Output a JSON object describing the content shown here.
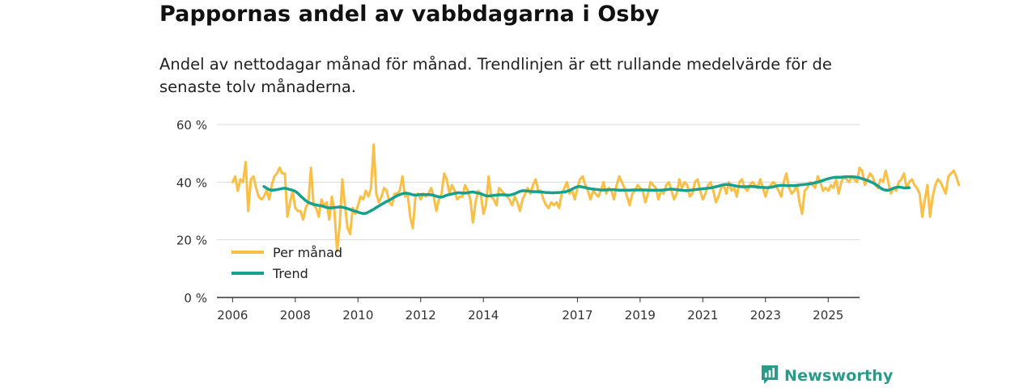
{
  "header": {
    "title": "Pappornas andel av vabbdagarna i Osby",
    "subtitle": "Andel av nettodagar månad för månad. Trendlinjen är ett rullande medelvärde för de senaste tolv månaderna."
  },
  "brand": {
    "name": "Newsworthy",
    "icon": "newsworthy-logo-icon"
  },
  "colors": {
    "monthly": "#fbbf45",
    "trend": "#16a08d",
    "grid": "#d9d9d9",
    "axis": "#333333"
  },
  "chart_data": {
    "type": "line",
    "title": "Pappornas andel av vabbdagarna i Osby",
    "xlabel": "",
    "ylabel": "",
    "x_start": 2006.0,
    "x_step_months": 1,
    "xlim": [
      2005.5,
      2026.0
    ],
    "ylim": [
      0,
      60
    ],
    "y_ticks": [
      0,
      20,
      40,
      60
    ],
    "y_tick_labels": [
      "0 %",
      "20 %",
      "40 %",
      "60 %"
    ],
    "x_ticks": [
      2006,
      2008,
      2010,
      2012,
      2014,
      2017,
      2019,
      2021,
      2023,
      2025
    ],
    "x_tick_labels": [
      "2006",
      "2008",
      "2010",
      "2012",
      "2014",
      "2017",
      "2019",
      "2021",
      "2023",
      "2025"
    ],
    "grid": true,
    "legend_position": "bottom-left",
    "series": [
      {
        "name": "Per månad",
        "values": [
          40,
          42,
          37,
          41,
          40,
          47,
          30,
          41,
          42,
          38,
          35,
          34,
          35,
          37,
          34,
          39,
          42,
          43,
          45,
          43,
          43,
          28,
          33,
          37,
          31,
          30,
          30,
          27,
          31,
          33,
          45,
          32,
          31,
          28,
          34,
          32,
          33,
          27,
          35,
          30,
          16,
          25,
          41,
          32,
          24,
          22,
          31,
          29,
          32,
          35,
          34,
          37,
          35,
          38,
          53,
          36,
          33,
          35,
          38,
          37,
          33,
          32,
          36,
          36,
          37,
          42,
          35,
          36,
          28,
          24,
          35,
          36,
          34,
          36,
          35,
          36,
          38,
          35,
          30,
          34,
          36,
          43,
          41,
          36,
          39,
          37,
          34,
          35,
          35,
          39,
          37,
          34,
          26,
          33,
          37,
          36,
          29,
          32,
          42,
          35,
          34,
          32,
          38,
          37,
          36,
          35,
          34,
          32,
          35,
          33,
          30,
          34,
          36,
          38,
          36,
          39,
          41,
          37,
          37,
          34,
          32,
          31,
          33,
          32,
          33,
          31,
          36,
          38,
          40,
          36,
          37,
          34,
          38,
          41,
          42,
          39,
          37,
          34,
          37,
          36,
          35,
          37,
          40,
          36,
          38,
          37,
          34,
          39,
          42,
          40,
          38,
          35,
          32,
          36,
          37,
          39,
          38,
          37,
          33,
          36,
          40,
          39,
          38,
          34,
          37,
          36,
          39,
          40,
          37,
          34,
          36,
          41,
          38,
          40,
          39,
          35,
          36,
          40,
          41,
          37,
          34,
          36,
          39,
          40,
          37,
          33,
          35,
          38,
          39,
          36,
          40,
          37,
          38,
          35,
          40,
          41,
          38,
          37,
          39,
          40,
          39,
          38,
          41,
          38,
          35,
          38,
          39,
          40,
          39,
          37,
          35,
          40,
          43,
          38,
          36,
          37,
          39,
          33,
          29,
          37,
          38,
          40,
          39,
          38,
          42,
          40,
          37,
          38,
          37,
          39,
          38,
          41,
          36,
          40,
          42,
          41,
          40,
          42,
          41,
          40,
          45,
          44,
          39,
          41,
          43,
          42,
          39,
          38,
          41,
          40,
          44,
          40,
          36,
          38,
          37,
          40,
          41,
          43,
          38,
          40,
          41,
          39,
          38,
          36,
          28,
          34,
          39,
          28,
          35,
          39,
          41,
          40,
          38,
          36,
          42,
          43,
          44,
          42,
          39
        ]
      },
      {
        "name": "Trend",
        "values": [
          null,
          null,
          null,
          null,
          null,
          null,
          null,
          null,
          null,
          null,
          null,
          null,
          38.5,
          37.9,
          37.4,
          37.2,
          37.3,
          37.4,
          37.6,
          37.8,
          37.9,
          37.7,
          37.4,
          37.2,
          36.8,
          36.1,
          35.2,
          34.4,
          33.6,
          33.0,
          32.6,
          32.3,
          32.1,
          31.9,
          31.8,
          31.5,
          31.2,
          31.1,
          31.1,
          31.2,
          31.3,
          31.4,
          31.3,
          31.1,
          30.8,
          30.5,
          30.2,
          29.9,
          29.6,
          29.3,
          29.1,
          29.2,
          29.6,
          30.1,
          30.6,
          31.2,
          31.7,
          32.3,
          32.8,
          33.3,
          33.7,
          34.3,
          34.8,
          35.3,
          35.7,
          36.0,
          36.2,
          36.1,
          35.9,
          35.6,
          35.5,
          35.6,
          35.7,
          35.7,
          35.7,
          35.7,
          35.6,
          35.4,
          35.1,
          34.9,
          34.8,
          35.1,
          35.5,
          35.7,
          35.9,
          36.1,
          36.3,
          36.3,
          36.2,
          36.2,
          36.3,
          36.5,
          36.6,
          36.4,
          36.2,
          36.0,
          35.6,
          35.3,
          35.2,
          35.3,
          35.4,
          35.5,
          35.6,
          35.6,
          35.6,
          35.5,
          35.5,
          35.7,
          36.0,
          36.4,
          36.8,
          37.0,
          37.0,
          36.9,
          36.8,
          36.7,
          36.7,
          36.7,
          36.6,
          36.5,
          36.4,
          36.4,
          36.3,
          36.3,
          36.4,
          36.4,
          36.5,
          36.6,
          36.8,
          37.1,
          37.6,
          38.1,
          38.4,
          38.5,
          38.3,
          38.1,
          37.9,
          37.7,
          37.6,
          37.5,
          37.4,
          37.3,
          37.3,
          37.3,
          37.4,
          37.4,
          37.4,
          37.3,
          37.2,
          37.2,
          37.2,
          37.2,
          37.2,
          37.3,
          37.3,
          37.3,
          37.3,
          37.3,
          37.3,
          37.2,
          37.2,
          37.2,
          37.2,
          37.2,
          37.2,
          37.3,
          37.4,
          37.5,
          37.6,
          37.5,
          37.4,
          37.3,
          37.2,
          37.1,
          37.1,
          37.2,
          37.3,
          37.4,
          37.5,
          37.6,
          37.7,
          37.8,
          37.9,
          38.0,
          38.2,
          38.4,
          38.6,
          38.9,
          39.1,
          39.2,
          39.2,
          39.0,
          38.8,
          38.6,
          38.5,
          38.4,
          38.4,
          38.4,
          38.5,
          38.5,
          38.4,
          38.3,
          38.2,
          38.2,
          38.1,
          38.1,
          38.2,
          38.4,
          38.6,
          38.8,
          38.9,
          38.9,
          38.8,
          38.8,
          38.8,
          38.8,
          38.9,
          39.0,
          39.1,
          39.2,
          39.3,
          39.4,
          39.6,
          39.8,
          40.0,
          40.3,
          40.6,
          40.9,
          41.2,
          41.4,
          41.6,
          41.7,
          41.7,
          41.7,
          41.8,
          41.9,
          41.9,
          41.9,
          41.8,
          41.7,
          41.5,
          41.2,
          40.9,
          40.6,
          40.2,
          39.8,
          39.3,
          38.7,
          38.0,
          37.5,
          37.2,
          37.2,
          37.5,
          37.9,
          38.2,
          38.3,
          38.2,
          38.0,
          38.0,
          38.1
        ]
      }
    ]
  }
}
